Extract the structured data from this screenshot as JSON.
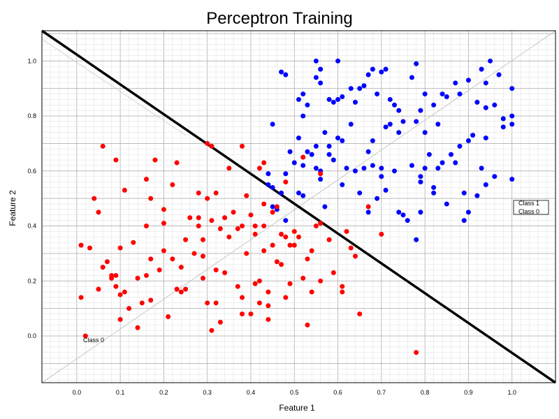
{
  "chart_data": {
    "type": "scatter",
    "title": "Perceptron Training",
    "xlabel": "Feature 1",
    "ylabel": "Feature 2",
    "xlim": [
      -0.08,
      1.1
    ],
    "ylim": [
      -0.17,
      1.11
    ],
    "xticks": [
      "0.0",
      "0.1",
      "0.2",
      "0.3",
      "0.4",
      "0.5",
      "0.6",
      "0.7",
      "0.8",
      "0.9",
      "1.0"
    ],
    "yticks": [
      "0.0",
      "0.2",
      "0.4",
      "0.6",
      "0.8",
      "1.0"
    ],
    "grid": true,
    "legend": {
      "position": "right",
      "entries": [
        "Class 1",
        "Class 0"
      ]
    },
    "annotation": "Class 0",
    "series": [
      {
        "name": "Class 1",
        "color": "#0000ff",
        "points": [
          [
            0.45,
            0.77
          ],
          [
            0.47,
            0.96
          ],
          [
            0.48,
            0.95
          ],
          [
            0.51,
            0.86
          ],
          [
            0.52,
            0.88
          ],
          [
            0.52,
            0.8
          ],
          [
            0.53,
            0.84
          ],
          [
            0.55,
            1.0
          ],
          [
            0.55,
            0.94
          ],
          [
            0.56,
            0.97
          ],
          [
            0.56,
            0.92
          ],
          [
            0.58,
            0.86
          ],
          [
            0.59,
            0.85
          ],
          [
            0.6,
            0.86
          ],
          [
            0.6,
            1.0
          ],
          [
            0.61,
            0.87
          ],
          [
            0.63,
            0.9
          ],
          [
            0.64,
            0.85
          ],
          [
            0.65,
            0.9
          ],
          [
            0.66,
            0.91
          ],
          [
            0.67,
            0.95
          ],
          [
            0.68,
            0.97
          ],
          [
            0.69,
            0.88
          ],
          [
            0.7,
            0.96
          ],
          [
            0.71,
            0.97
          ],
          [
            0.72,
            0.86
          ],
          [
            0.73,
            0.84
          ],
          [
            0.74,
            0.82
          ],
          [
            0.75,
            0.78
          ],
          [
            0.77,
            0.94
          ],
          [
            0.78,
            0.99
          ],
          [
            0.79,
            0.82
          ],
          [
            0.8,
            0.88
          ],
          [
            0.82,
            0.84
          ],
          [
            0.83,
            0.77
          ],
          [
            0.84,
            0.88
          ],
          [
            0.85,
            0.87
          ],
          [
            0.87,
            0.92
          ],
          [
            0.88,
            0.88
          ],
          [
            0.9,
            0.93
          ],
          [
            0.92,
            0.85
          ],
          [
            0.93,
            0.97
          ],
          [
            0.94,
            0.83
          ],
          [
            0.94,
            0.92
          ],
          [
            0.95,
            1.0
          ],
          [
            0.96,
            0.84
          ],
          [
            0.97,
            0.95
          ],
          [
            0.98,
            0.76
          ],
          [
            0.98,
            0.79
          ],
          [
            1.0,
            0.9
          ],
          [
            1.0,
            0.8
          ],
          [
            1.0,
            0.77
          ],
          [
            0.44,
            0.59
          ],
          [
            0.44,
            0.55
          ],
          [
            0.45,
            0.54
          ],
          [
            0.45,
            0.47
          ],
          [
            0.46,
            0.46
          ],
          [
            0.47,
            0.52
          ],
          [
            0.48,
            0.42
          ],
          [
            0.48,
            0.59
          ],
          [
            0.49,
            0.67
          ],
          [
            0.5,
            0.63
          ],
          [
            0.51,
            0.72
          ],
          [
            0.51,
            0.52
          ],
          [
            0.52,
            0.62
          ],
          [
            0.52,
            0.51
          ],
          [
            0.53,
            0.67
          ],
          [
            0.54,
            0.66
          ],
          [
            0.55,
            0.69
          ],
          [
            0.55,
            0.61
          ],
          [
            0.56,
            0.6
          ],
          [
            0.56,
            0.57
          ],
          [
            0.57,
            0.74
          ],
          [
            0.57,
            0.47
          ],
          [
            0.58,
            0.69
          ],
          [
            0.58,
            0.66
          ],
          [
            0.59,
            0.64
          ],
          [
            0.6,
            0.72
          ],
          [
            0.61,
            0.71
          ],
          [
            0.61,
            0.55
          ],
          [
            0.62,
            0.61
          ],
          [
            0.63,
            0.77
          ],
          [
            0.64,
            0.6
          ],
          [
            0.65,
            0.52
          ],
          [
            0.66,
            0.61
          ],
          [
            0.67,
            0.67
          ],
          [
            0.67,
            0.45
          ],
          [
            0.68,
            0.71
          ],
          [
            0.68,
            0.62
          ],
          [
            0.69,
            0.5
          ],
          [
            0.7,
            0.61
          ],
          [
            0.7,
            0.58
          ],
          [
            0.71,
            0.76
          ],
          [
            0.71,
            0.53
          ],
          [
            0.72,
            0.77
          ],
          [
            0.73,
            0.6
          ],
          [
            0.74,
            0.74
          ],
          [
            0.74,
            0.45
          ],
          [
            0.75,
            0.44
          ],
          [
            0.76,
            0.42
          ],
          [
            0.77,
            0.62
          ],
          [
            0.78,
            0.35
          ],
          [
            0.78,
            0.78
          ],
          [
            0.79,
            0.56
          ],
          [
            0.79,
            0.58
          ],
          [
            0.79,
            0.45
          ],
          [
            0.8,
            0.74
          ],
          [
            0.8,
            0.61
          ],
          [
            0.81,
            0.66
          ],
          [
            0.82,
            0.52
          ],
          [
            0.82,
            0.54
          ],
          [
            0.83,
            0.61
          ],
          [
            0.84,
            0.63
          ],
          [
            0.85,
            0.48
          ],
          [
            0.86,
            0.66
          ],
          [
            0.87,
            0.63
          ],
          [
            0.88,
            0.69
          ],
          [
            0.89,
            0.42
          ],
          [
            0.89,
            0.52
          ],
          [
            0.9,
            0.71
          ],
          [
            0.9,
            0.45
          ],
          [
            0.91,
            0.73
          ],
          [
            0.92,
            0.51
          ],
          [
            0.93,
            0.61
          ],
          [
            0.94,
            0.72
          ],
          [
            0.94,
            0.55
          ],
          [
            0.96,
            0.58
          ],
          [
            1.0,
            0.57
          ]
        ]
      },
      {
        "name": "Class 0",
        "color": "#ff0000",
        "points": [
          [
            0.01,
            0.33
          ],
          [
            0.01,
            0.14
          ],
          [
            0.02,
            0.0
          ],
          [
            0.03,
            0.32
          ],
          [
            0.04,
            0.5
          ],
          [
            0.05,
            0.17
          ],
          [
            0.05,
            0.45
          ],
          [
            0.06,
            0.25
          ],
          [
            0.06,
            0.69
          ],
          [
            0.07,
            0.27
          ],
          [
            0.08,
            0.22
          ],
          [
            0.08,
            0.21
          ],
          [
            0.09,
            0.18
          ],
          [
            0.09,
            0.64
          ],
          [
            0.09,
            0.22
          ],
          [
            0.1,
            0.32
          ],
          [
            0.1,
            0.15
          ],
          [
            0.1,
            0.06
          ],
          [
            0.11,
            0.53
          ],
          [
            0.11,
            0.16
          ],
          [
            0.12,
            0.1
          ],
          [
            0.13,
            0.34
          ],
          [
            0.14,
            0.03
          ],
          [
            0.14,
            0.21
          ],
          [
            0.15,
            0.12
          ],
          [
            0.16,
            0.57
          ],
          [
            0.16,
            0.4
          ],
          [
            0.16,
            0.22
          ],
          [
            0.17,
            0.5
          ],
          [
            0.17,
            0.28
          ],
          [
            0.17,
            0.13
          ],
          [
            0.18,
            0.64
          ],
          [
            0.19,
            0.24
          ],
          [
            0.2,
            0.41
          ],
          [
            0.2,
            0.31
          ],
          [
            0.2,
            0.46
          ],
          [
            0.21,
            0.07
          ],
          [
            0.22,
            0.55
          ],
          [
            0.22,
            0.28
          ],
          [
            0.23,
            0.63
          ],
          [
            0.23,
            0.17
          ],
          [
            0.24,
            0.25
          ],
          [
            0.24,
            0.16
          ],
          [
            0.25,
            0.17
          ],
          [
            0.25,
            0.35
          ],
          [
            0.26,
            0.43
          ],
          [
            0.27,
            0.3
          ],
          [
            0.28,
            0.4
          ],
          [
            0.28,
            0.52
          ],
          [
            0.28,
            0.43
          ],
          [
            0.29,
            0.35
          ],
          [
            0.29,
            0.29
          ],
          [
            0.29,
            0.21
          ],
          [
            0.3,
            0.12
          ],
          [
            0.3,
            0.5
          ],
          [
            0.3,
            0.7
          ],
          [
            0.31,
            0.69
          ],
          [
            0.31,
            0.42
          ],
          [
            0.31,
            0.02
          ],
          [
            0.32,
            0.52
          ],
          [
            0.32,
            0.24
          ],
          [
            0.32,
            0.12
          ],
          [
            0.33,
            0.39
          ],
          [
            0.33,
            0.05
          ],
          [
            0.34,
            0.43
          ],
          [
            0.34,
            0.23
          ],
          [
            0.35,
            0.61
          ],
          [
            0.35,
            0.36
          ],
          [
            0.36,
            0.45
          ],
          [
            0.37,
            0.39
          ],
          [
            0.37,
            0.18
          ],
          [
            0.38,
            0.4
          ],
          [
            0.38,
            0.14
          ],
          [
            0.38,
            0.08
          ],
          [
            0.38,
            0.69
          ],
          [
            0.39,
            0.3
          ],
          [
            0.39,
            0.51
          ],
          [
            0.4,
            0.44
          ],
          [
            0.4,
            0.08
          ],
          [
            0.41,
            0.37
          ],
          [
            0.41,
            0.4
          ],
          [
            0.41,
            0.19
          ],
          [
            0.42,
            0.61
          ],
          [
            0.42,
            0.2
          ],
          [
            0.42,
            0.12
          ],
          [
            0.43,
            0.48
          ],
          [
            0.43,
            0.4
          ],
          [
            0.43,
            0.31
          ],
          [
            0.43,
            0.63
          ],
          [
            0.44,
            0.11
          ],
          [
            0.44,
            0.16
          ],
          [
            0.44,
            0.06
          ],
          [
            0.45,
            0.33
          ],
          [
            0.45,
            0.45
          ],
          [
            0.46,
            0.47
          ],
          [
            0.46,
            0.27
          ],
          [
            0.47,
            0.37
          ],
          [
            0.47,
            0.26
          ],
          [
            0.48,
            0.14
          ],
          [
            0.48,
            0.36
          ],
          [
            0.48,
            0.56
          ],
          [
            0.49,
            0.33
          ],
          [
            0.49,
            0.19
          ],
          [
            0.5,
            0.38
          ],
          [
            0.5,
            0.33
          ],
          [
            0.51,
            0.36
          ],
          [
            0.52,
            0.21
          ],
          [
            0.52,
            0.65
          ],
          [
            0.53,
            0.04
          ],
          [
            0.53,
            0.28
          ],
          [
            0.54,
            0.16
          ],
          [
            0.54,
            0.31
          ],
          [
            0.55,
            0.4
          ],
          [
            0.56,
            0.2
          ],
          [
            0.56,
            0.41
          ],
          [
            0.56,
            0.59
          ],
          [
            0.58,
            0.35
          ],
          [
            0.59,
            0.23
          ],
          [
            0.61,
            0.18
          ],
          [
            0.61,
            0.16
          ],
          [
            0.62,
            0.38
          ],
          [
            0.63,
            0.32
          ],
          [
            0.64,
            0.29
          ],
          [
            0.65,
            0.08
          ],
          [
            0.67,
            0.47
          ],
          [
            0.7,
            0.37
          ],
          [
            0.78,
            -0.06
          ]
        ]
      }
    ],
    "decision_boundary": {
      "type": "line",
      "color": "#000000",
      "points": [
        [
          -0.08,
          1.11
        ],
        [
          1.1,
          -0.17
        ]
      ]
    },
    "reference_line": {
      "type": "line",
      "color": "#bbbbbb",
      "points": [
        [
          -0.08,
          -0.17
        ],
        [
          1.1,
          1.11
        ]
      ]
    }
  }
}
